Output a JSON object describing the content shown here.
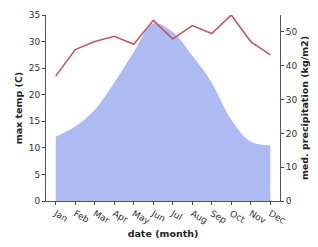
{
  "chart_data": {
    "type": "line",
    "xlabel": "date (month)",
    "ylabel": "max temp (C)",
    "y2label": "med. precipitation (kg/m2)",
    "categories": [
      "Jan",
      "Feb",
      "Mar",
      "Apr",
      "May",
      "Jun",
      "Jul",
      "Aug",
      "Sep",
      "Oct",
      "Nov",
      "Dec"
    ],
    "series": [
      {
        "name": "max temp",
        "type": "line",
        "color": "#c8575b",
        "values": [
          23.5,
          28.5,
          30,
          31,
          29.5,
          34,
          30.5,
          33,
          31.5,
          35,
          30,
          27.5
        ]
      },
      {
        "name": "med. precipitation",
        "type": "area",
        "axis": "y2",
        "color": "#aebaf2",
        "values": [
          19,
          22,
          27,
          35,
          44,
          52.5,
          50,
          43,
          35,
          24,
          17.5,
          16.5
        ]
      }
    ],
    "ylim": [
      0,
      35
    ],
    "yticks": [
      0,
      5,
      10,
      15,
      20,
      25,
      30,
      35
    ],
    "y2lim": [
      0,
      55
    ],
    "y2ticks": [
      0,
      10,
      20,
      30,
      40,
      50
    ],
    "grid": false
  }
}
